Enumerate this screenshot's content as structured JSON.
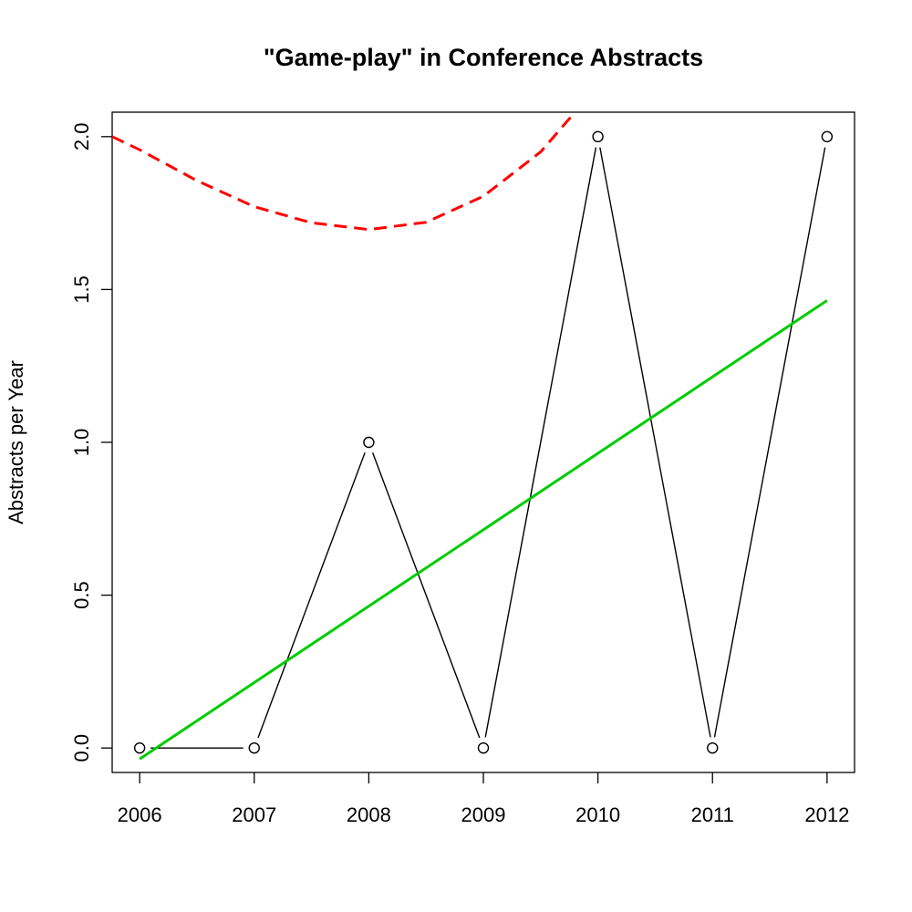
{
  "chart_data": {
    "type": "line",
    "title": "\"Game-play\" in Conference Abstracts",
    "xlabel": "",
    "ylabel": "Abstracts per Year",
    "x": [
      2006,
      2007,
      2008,
      2009,
      2010,
      2011,
      2012
    ],
    "xlim": [
      2005.76,
      2012.24
    ],
    "ylim": [
      -0.08,
      2.08
    ],
    "xticks": [
      "2006",
      "2007",
      "2008",
      "2009",
      "2010",
      "2011",
      "2012"
    ],
    "yticks": [
      "0.0",
      "0.5",
      "1.0",
      "1.5",
      "2.0"
    ],
    "grid": false,
    "series": [
      {
        "style": "line-with-open-circles",
        "color": "#000000",
        "values": [
          0,
          0,
          1,
          0,
          2,
          0,
          2
        ]
      },
      {
        "style": "solid",
        "color": "#00cc00",
        "x": [
          2006,
          2012
        ],
        "values": [
          -0.036,
          1.464
        ]
      },
      {
        "style": "dashed",
        "color": "#ff0000",
        "x": [
          2005.76,
          2006.0,
          2006.5,
          2007.0,
          2007.5,
          2008.0,
          2008.5,
          2009.0,
          2009.5,
          2009.8
        ],
        "values": [
          2.0,
          1.957,
          1.856,
          1.771,
          1.718,
          1.696,
          1.72,
          1.805,
          1.95,
          2.08
        ]
      }
    ]
  }
}
